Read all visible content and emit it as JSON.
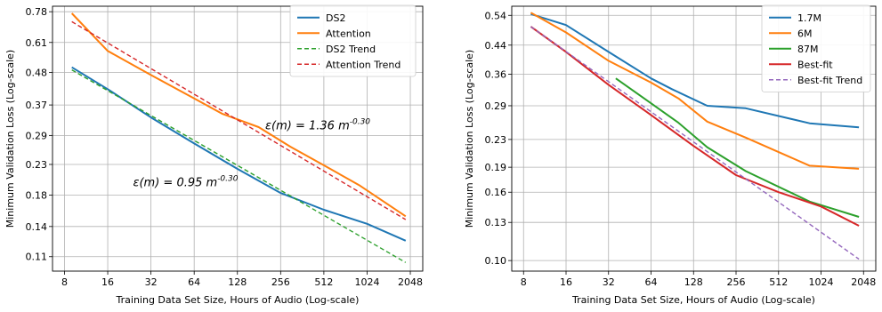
{
  "chart_data": [
    {
      "type": "line",
      "xscale": "log2",
      "yscale": "log",
      "xlabel": "Training Data Set Size, Hours of Audio (Log-scale)",
      "ylabel": "Minimum Validation Loss (Log-scale)",
      "xlim": [
        6.6,
        2500
      ],
      "ylim": [
        0.098,
        0.815
      ],
      "xticks": [
        8,
        16,
        32,
        64,
        128,
        256,
        512,
        1024,
        2048
      ],
      "xtick_labels": [
        "8",
        "16",
        "32",
        "64",
        "128",
        "256",
        "512",
        "1024",
        "2048"
      ],
      "yticks": [
        0.11,
        0.14,
        0.18,
        0.23,
        0.29,
        0.37,
        0.48,
        0.61,
        0.78
      ],
      "ytick_labels": [
        "0.11",
        "0.14",
        "0.18",
        "0.23",
        "0.29",
        "0.37",
        "0.48",
        "0.61",
        "0.78"
      ],
      "grid": true,
      "legend_position": "top-right",
      "series": [
        {
          "name": "DS2",
          "color": "#1f77b4",
          "style": "solid",
          "x": [
            9,
            16,
            32,
            64,
            128,
            256,
            512,
            1024,
            1900
          ],
          "y": [
            0.5,
            0.42,
            0.335,
            0.272,
            0.222,
            0.183,
            0.16,
            0.143,
            0.125
          ]
        },
        {
          "name": "Attention",
          "color": "#ff7f0e",
          "style": "solid",
          "x": [
            9,
            16,
            32,
            64,
            100,
            180,
            300,
            500,
            900,
            1900
          ],
          "y": [
            0.77,
            0.57,
            0.47,
            0.39,
            0.345,
            0.31,
            0.265,
            0.23,
            0.195,
            0.152
          ]
        },
        {
          "name": "DS2 Trend",
          "color": "#2ca02c",
          "style": "dashed",
          "x": [
            9,
            1900
          ],
          "y": [
            0.49,
            0.105
          ]
        },
        {
          "name": "Attention Trend",
          "color": "#d62728",
          "style": "dashed",
          "x": [
            9,
            1900
          ],
          "y": [
            0.72,
            0.148
          ]
        }
      ],
      "annotations": [
        {
          "text": "ε(m) = 1.36 m",
          "sup": "-0.30",
          "x": 200,
          "y": 0.305
        },
        {
          "text": "ε(m) = 0.95 m",
          "sup": "-0.30",
          "x": 24,
          "y": 0.193
        }
      ]
    },
    {
      "type": "line",
      "xscale": "log2",
      "yscale": "log",
      "xlabel": "Training Data Set Size, Hours of Audio (Log-scale)",
      "ylabel": "Minimum Validation Loss (Log-scale)",
      "xlim": [
        6.6,
        2500
      ],
      "ylim": [
        0.093,
        0.575
      ],
      "xticks": [
        8,
        16,
        32,
        64,
        128,
        256,
        512,
        1024,
        2048
      ],
      "xtick_labels": [
        "8",
        "16",
        "32",
        "64",
        "128",
        "256",
        "512",
        "1024",
        "2048"
      ],
      "yticks": [
        0.1,
        0.13,
        0.16,
        0.19,
        0.23,
        0.29,
        0.36,
        0.44,
        0.54
      ],
      "ytick_labels": [
        "0.10",
        "0.13",
        "0.16",
        "0.19",
        "0.23",
        "0.29",
        "0.36",
        "0.44",
        "0.54"
      ],
      "grid": true,
      "legend_position": "top-right",
      "series": [
        {
          "name": "1.7M",
          "color": "#1f77b4",
          "style": "solid",
          "x": [
            9,
            16,
            32,
            64,
            90,
            160,
            300,
            850,
            1900
          ],
          "y": [
            0.545,
            0.505,
            0.42,
            0.35,
            0.325,
            0.29,
            0.285,
            0.257,
            0.25
          ]
        },
        {
          "name": "6M",
          "color": "#ff7f0e",
          "style": "solid",
          "x": [
            9,
            16,
            32,
            64,
            100,
            160,
            300,
            850,
            1900
          ],
          "y": [
            0.55,
            0.48,
            0.395,
            0.34,
            0.305,
            0.26,
            0.233,
            0.192,
            0.188
          ]
        },
        {
          "name": "87M",
          "color": "#2ca02c",
          "style": "solid",
          "x": [
            36,
            64,
            100,
            160,
            300,
            850,
            1900
          ],
          "y": [
            0.35,
            0.295,
            0.258,
            0.218,
            0.185,
            0.15,
            0.135
          ]
        },
        {
          "name": "Best-fit",
          "color": "#d62728",
          "style": "solid",
          "x": [
            9,
            16,
            32,
            64,
            128,
            256,
            512,
            1024,
            1900
          ],
          "y": [
            0.5,
            0.42,
            0.335,
            0.272,
            0.22,
            0.18,
            0.16,
            0.145,
            0.127
          ]
        },
        {
          "name": "Best-fit Trend",
          "color": "#9467bd",
          "style": "dashed",
          "x": [
            9,
            1900
          ],
          "y": [
            0.5,
            0.101
          ]
        }
      ]
    }
  ]
}
